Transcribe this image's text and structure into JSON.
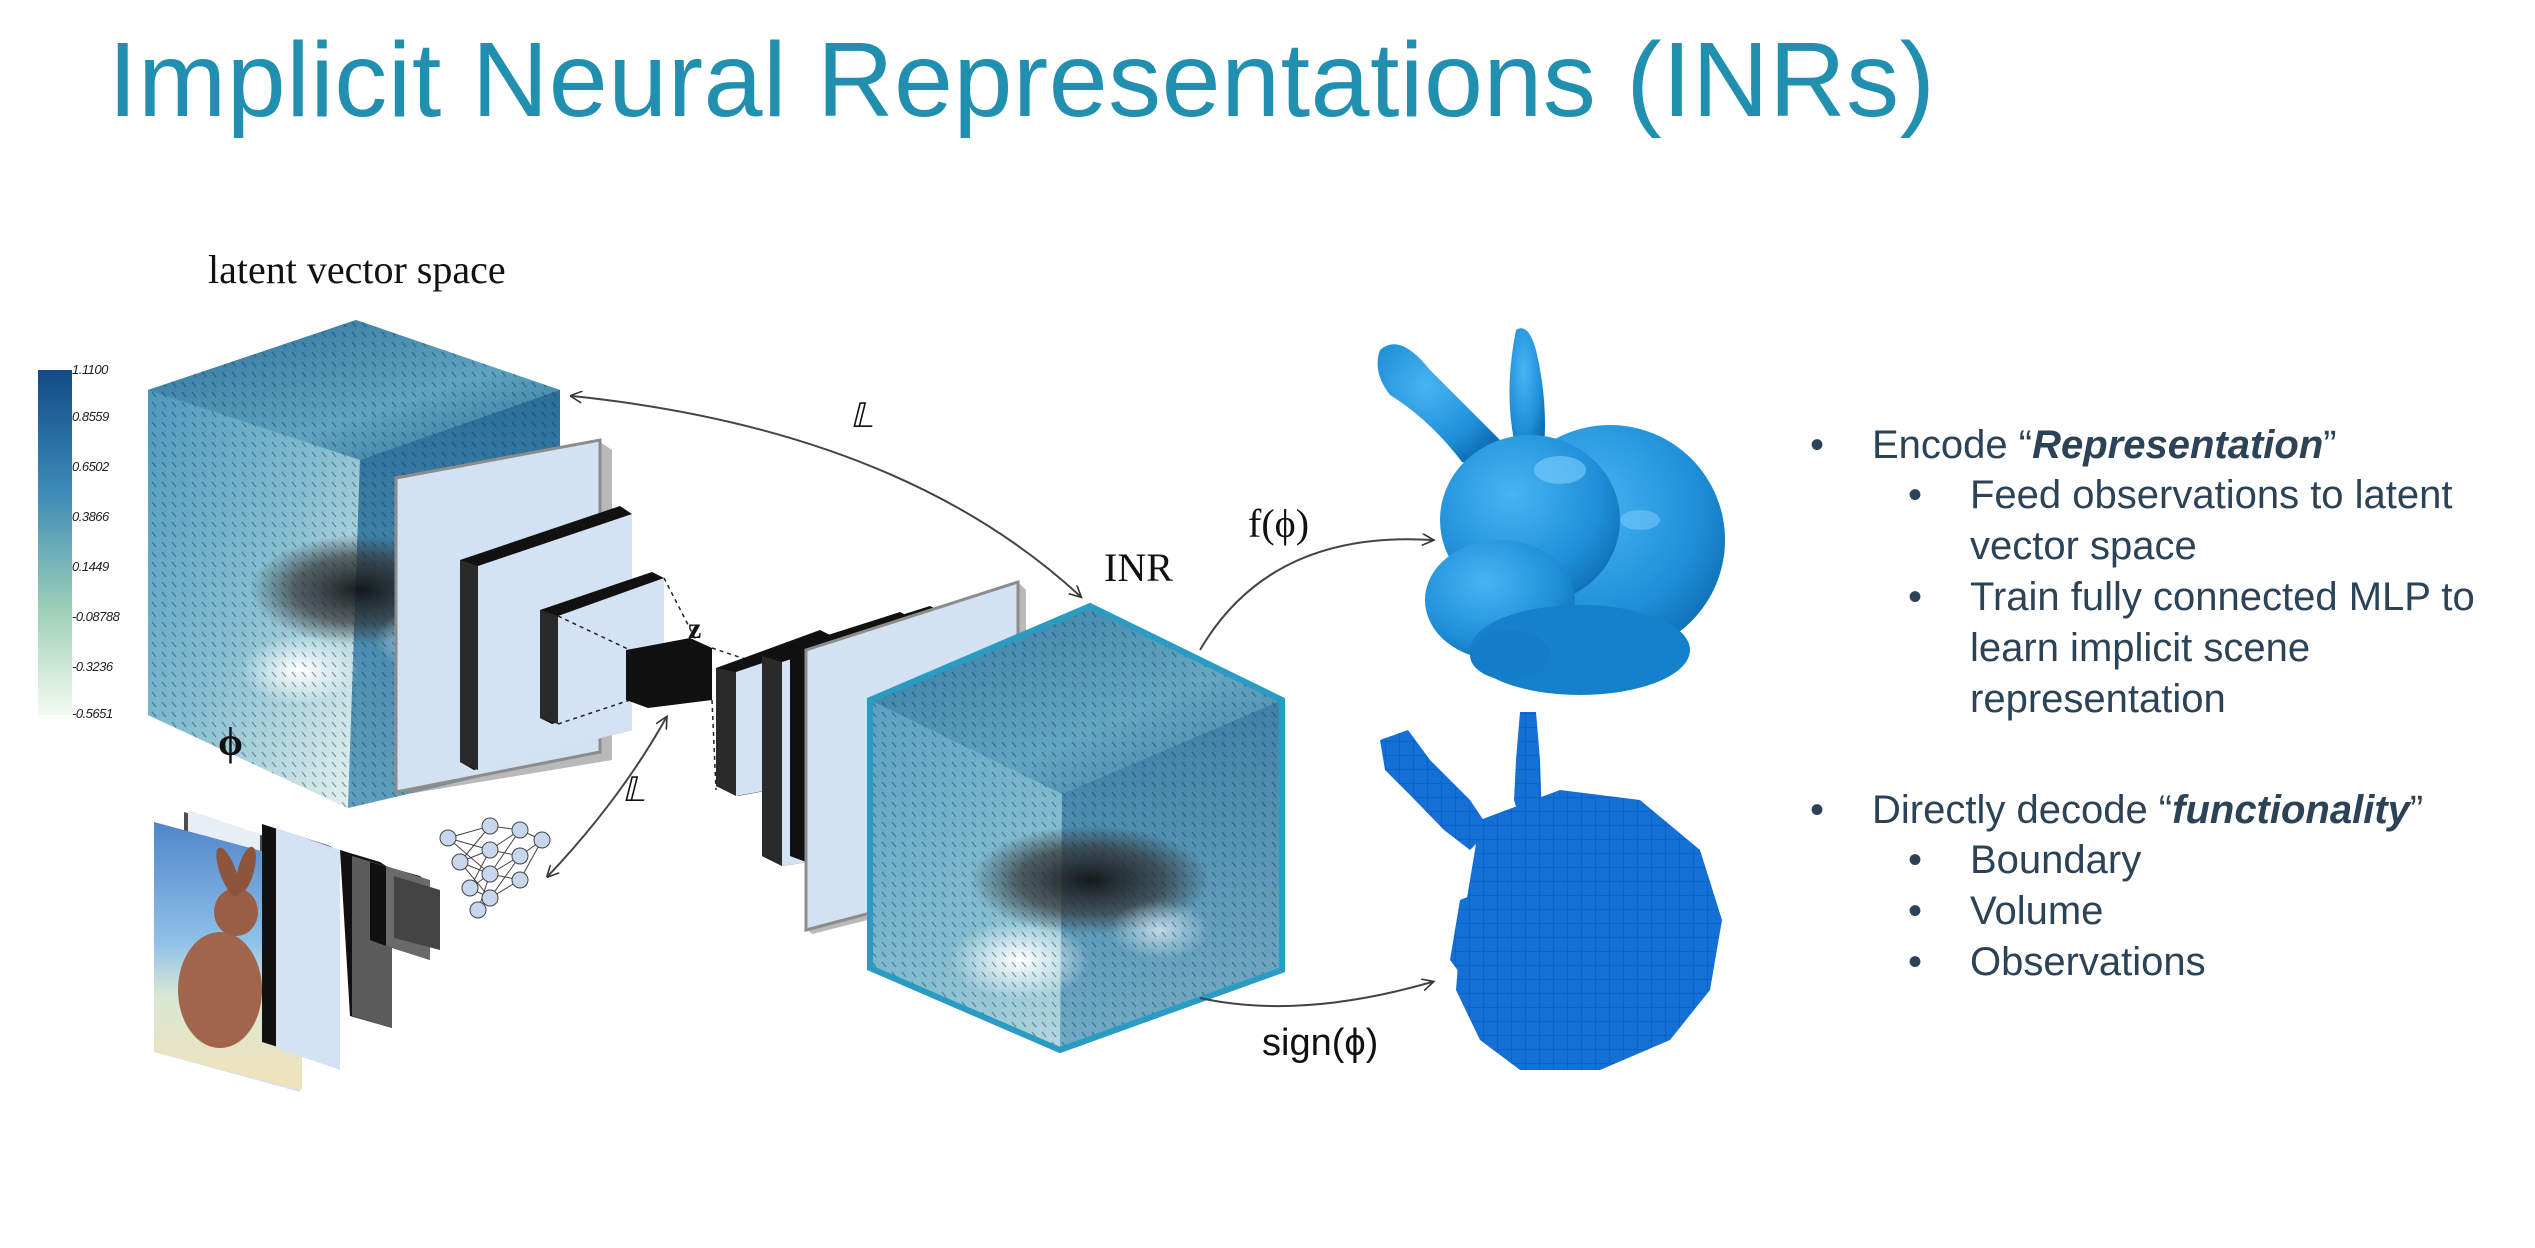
{
  "slide": {
    "title": "Implicit Neural Representations (INRs)"
  },
  "diagram": {
    "latent_label": "latent vector space",
    "inr_label": "INR",
    "phi_symbol": "ϕ",
    "z_symbol": "z",
    "loss_top": "𝕃",
    "loss_bottom": "𝕃",
    "f_phi": "f(ϕ)",
    "sign_phi": "sign(ϕ)",
    "colorbar_ticks": [
      "1.1100",
      "0.8559",
      "0.6502",
      "0.3866",
      "0.1449",
      "-0.08788",
      "-0.3236",
      "-0.5651"
    ]
  },
  "bullets": {
    "section1": {
      "prefix": "Encode “",
      "emph": "Representation",
      "suffix": "”",
      "items": [
        "Feed observations to latent vector space",
        "Train fully connected MLP to learn implicit scene representation"
      ]
    },
    "section2": {
      "prefix": "Directly decode “",
      "emph": "functionality",
      "suffix": "”",
      "items": [
        "Boundary",
        "Volume",
        "Observations"
      ]
    }
  },
  "colors": {
    "title": "#2190b0",
    "text": "#2b4257",
    "cube_dark": "#1f5f8c",
    "cube_light": "#e6f2e6",
    "bunny_smooth": "#1e8fd8",
    "bunny_voxel": "#0b63c8",
    "inr_cube_border": "#2a9cc4"
  }
}
